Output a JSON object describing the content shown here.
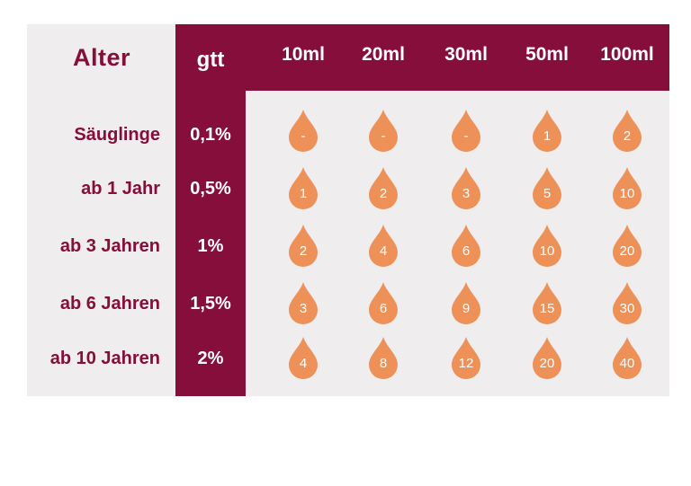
{
  "header": {
    "age": "Alter",
    "gtt": "gtt",
    "volumes": [
      "10ml",
      "20ml",
      "30ml",
      "50ml",
      "100ml"
    ]
  },
  "rows": [
    {
      "age": "Säuglinge",
      "percent": "0,1%",
      "drops": [
        "-",
        "-",
        "-",
        "1",
        "2"
      ]
    },
    {
      "age": "ab 1 Jahr",
      "percent": "0,5%",
      "drops": [
        "1",
        "2",
        "3",
        "5",
        "10"
      ]
    },
    {
      "age": "ab 3 Jahren",
      "percent": "1%",
      "drops": [
        "2",
        "4",
        "6",
        "10",
        "20"
      ]
    },
    {
      "age": "ab 6 Jahren",
      "percent": "1,5%",
      "drops": [
        "3",
        "6",
        "9",
        "15",
        "30"
      ]
    },
    {
      "age": "ab 10 Jahren",
      "percent": "2%",
      "drops": [
        "4",
        "8",
        "12",
        "20",
        "40"
      ]
    }
  ],
  "colors": {
    "accent": "#850e3a",
    "background": "#efeded",
    "drop": "#ed9158",
    "text_on_accent": "#ffffff"
  },
  "icons": {
    "drop": "drop-icon"
  }
}
